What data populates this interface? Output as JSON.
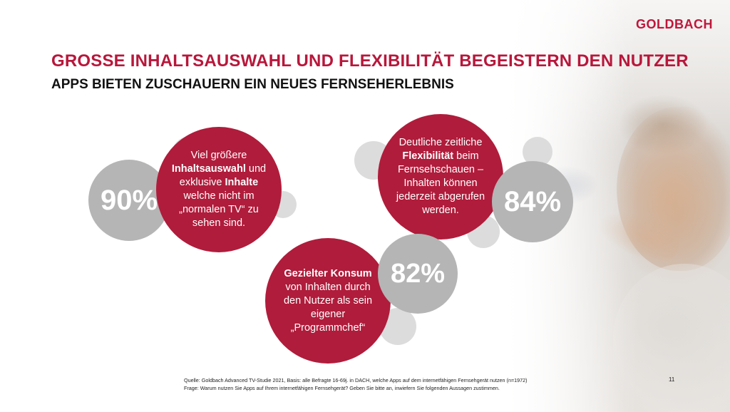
{
  "brand": {
    "logo_text": "GOLDBACH"
  },
  "title": "GROSSE INHALTSAUSWAHL UND FLEXIBILITÄT BEGEISTERN DEN NUTZER",
  "subtitle": "APPS BIETEN ZUSCHAUERN EIN NEUES FERNSEHERLEBNIS",
  "stats": [
    {
      "value": "90%",
      "lines": [
        {
          "parts": [
            {
              "t": "Viel größere",
              "b": false
            }
          ]
        },
        {
          "parts": [
            {
              "t": "Inhaltsauswahl",
              "b": true
            },
            {
              "t": " und",
              "b": false
            }
          ]
        },
        {
          "parts": [
            {
              "t": "exklusive ",
              "b": false
            },
            {
              "t": "Inhalte",
              "b": true
            }
          ]
        },
        {
          "parts": [
            {
              "t": "welche nicht im",
              "b": false
            }
          ]
        },
        {
          "parts": [
            {
              "t": "„normalen TV“ zu",
              "b": false
            }
          ]
        },
        {
          "parts": [
            {
              "t": "sehen sind.",
              "b": false
            }
          ]
        }
      ]
    },
    {
      "value": "84%",
      "lines": [
        {
          "parts": [
            {
              "t": "Deutliche zeitliche",
              "b": false
            }
          ]
        },
        {
          "parts": [
            {
              "t": "Flexibilität",
              "b": true
            },
            {
              "t": " beim",
              "b": false
            }
          ]
        },
        {
          "parts": [
            {
              "t": "Fernsehschauen –",
              "b": false
            }
          ]
        },
        {
          "parts": [
            {
              "t": "Inhalten können",
              "b": false
            }
          ]
        },
        {
          "parts": [
            {
              "t": "jederzeit abgerufen",
              "b": false
            }
          ]
        },
        {
          "parts": [
            {
              "t": "werden.",
              "b": false
            }
          ]
        }
      ]
    },
    {
      "value": "82%",
      "lines": [
        {
          "parts": [
            {
              "t": "Gezielter Konsum",
              "b": true
            }
          ]
        },
        {
          "parts": [
            {
              "t": "von Inhalten durch",
              "b": false
            }
          ]
        },
        {
          "parts": [
            {
              "t": "den Nutzer als sein",
              "b": false
            }
          ]
        },
        {
          "parts": [
            {
              "t": "eigener",
              "b": false
            }
          ]
        },
        {
          "parts": [
            {
              "t": "„Programmchef“",
              "b": false
            }
          ]
        }
      ]
    }
  ],
  "footer": {
    "source": "Quelle: Goldbach Advanced TV-Studie 2021, Basis: alle Befragte 16-69j. in DACH, welche Apps auf dem internetfähigen Fernsehgerät nutzen (n=1972)",
    "question": "Frage: Warum nutzen Sie Apps auf Ihrem internetfähigen Fernsehgerät? Geben Sie bitte an, inwiefern Sie folgenden Aussagen zustimmen.",
    "page_number": "11"
  },
  "colors": {
    "accent": "#b01c3b",
    "title_red": "#b8173b",
    "grey_percent": "#b5b5b5",
    "grey_light": "#dcdcdc"
  }
}
